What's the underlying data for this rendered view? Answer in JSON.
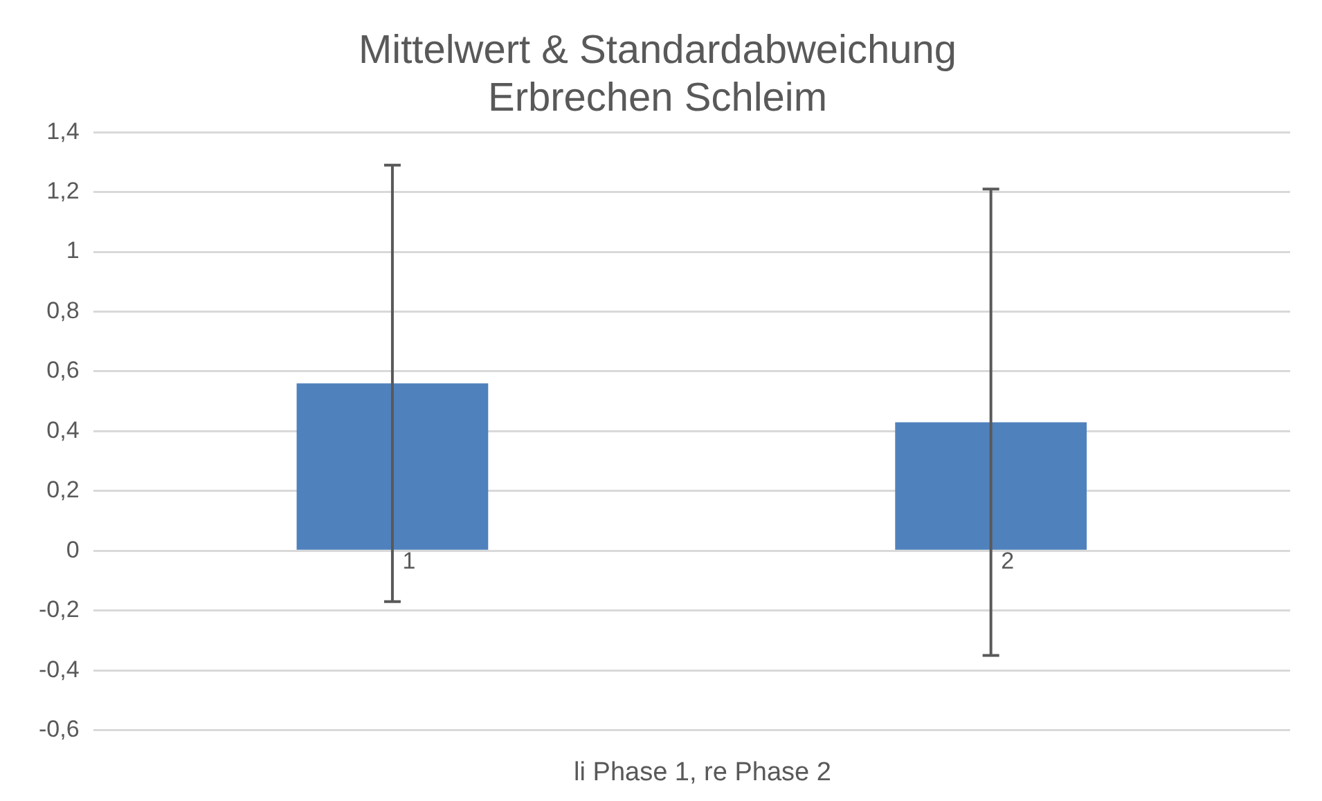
{
  "chart_data": {
    "type": "bar",
    "title": "Mittelwert & Standardabweichung\nErbrechen Schleim",
    "xlabel": "li Phase 1, re Phase 2",
    "categories": [
      "1",
      "2"
    ],
    "values": [
      0.56,
      0.43
    ],
    "errors": [
      0.73,
      0.78
    ],
    "color": "#4f81bd",
    "ylim": [
      -0.6,
      1.4
    ],
    "yticks": [
      {
        "value": -0.6,
        "label": "-0,6"
      },
      {
        "value": -0.4,
        "label": "-0,4"
      },
      {
        "value": -0.2,
        "label": "-0,2"
      },
      {
        "value": 0,
        "label": "0"
      },
      {
        "value": 0.2,
        "label": "0,2"
      },
      {
        "value": 0.4,
        "label": "0,4"
      },
      {
        "value": 0.6,
        "label": "0,6"
      },
      {
        "value": 0.8,
        "label": "0,8"
      },
      {
        "value": 1,
        "label": "1"
      },
      {
        "value": 1.2,
        "label": "1,2"
      },
      {
        "value": 1.4,
        "label": "1,4"
      }
    ],
    "grid": "y",
    "legend": false
  }
}
